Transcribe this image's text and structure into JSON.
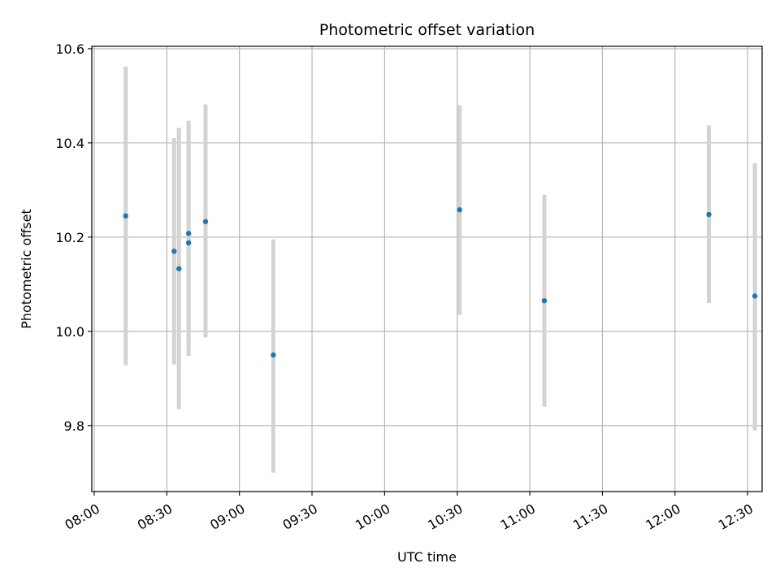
{
  "chart_data": {
    "type": "scatter",
    "title": "Photometric offset variation",
    "xlabel": "UTC time",
    "ylabel": "Photometric offset",
    "xlim": [
      "07:59",
      "12:36"
    ],
    "ylim": [
      9.66,
      10.605
    ],
    "xticks": [
      "08:00",
      "08:30",
      "09:00",
      "09:30",
      "10:00",
      "10:30",
      "11:00",
      "11:30",
      "12:00",
      "12:30"
    ],
    "yticks": [
      9.8,
      10.0,
      10.2,
      10.4,
      10.6
    ],
    "ytick_labels": [
      "9.8",
      "10.0",
      "10.2",
      "10.4",
      "10.6"
    ],
    "grid": true,
    "colors": {
      "point": "#1f77b4",
      "errorbar": "#d3d3d3",
      "grid": "#b0b0b0"
    },
    "points": [
      {
        "x": "08:13",
        "y": 10.245,
        "ylow": 9.928,
        "yhigh": 10.562
      },
      {
        "x": "08:33",
        "y": 10.17,
        "ylow": 9.93,
        "yhigh": 10.41
      },
      {
        "x": "08:35",
        "y": 10.133,
        "ylow": 9.835,
        "yhigh": 10.432
      },
      {
        "x": "08:39",
        "y": 10.188,
        "ylow": 9.948,
        "yhigh": 10.428
      },
      {
        "x": "08:39",
        "y": 10.208,
        "ylow": 9.97,
        "yhigh": 10.447
      },
      {
        "x": "08:46",
        "y": 10.233,
        "ylow": 9.987,
        "yhigh": 10.482
      },
      {
        "x": "09:14",
        "y": 9.95,
        "ylow": 9.7,
        "yhigh": 10.195
      },
      {
        "x": "10:31",
        "y": 10.258,
        "ylow": 10.035,
        "yhigh": 10.48
      },
      {
        "x": "11:06",
        "y": 10.065,
        "ylow": 9.84,
        "yhigh": 10.29
      },
      {
        "x": "12:14",
        "y": 10.248,
        "ylow": 10.06,
        "yhigh": 10.437
      },
      {
        "x": "12:33",
        "y": 10.075,
        "ylow": 9.79,
        "yhigh": 10.357
      }
    ]
  }
}
